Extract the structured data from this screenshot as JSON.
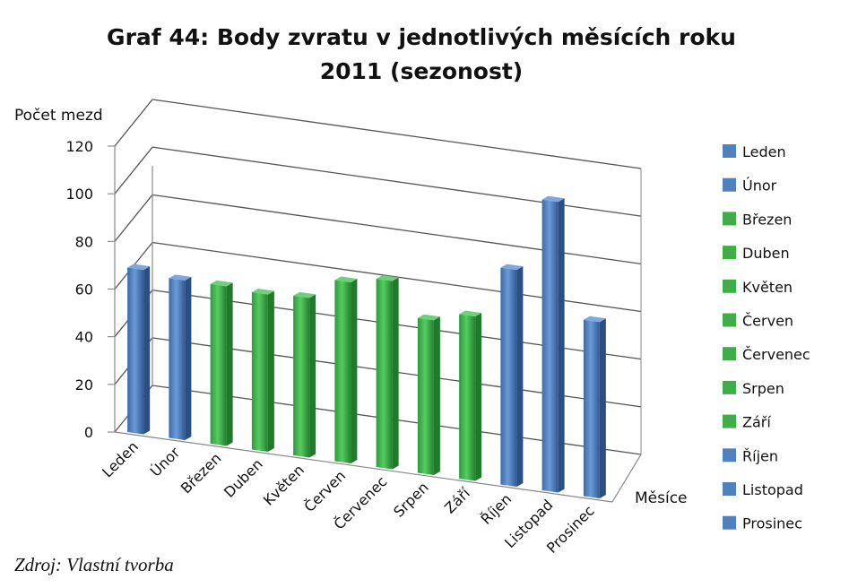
{
  "chart_data": {
    "type": "bar",
    "title": "Graf 44: Body zvratu v jednotlivých měsících roku 2011 (sezonost)",
    "title_lines": [
      "Graf 44: Body zvratu v jednotlivých měsících roku",
      "2011 (sezonost)"
    ],
    "ylabel": "Počet mezd",
    "xlabel": "Měsíce",
    "ylim": [
      0,
      120
    ],
    "yticks": [
      0,
      20,
      40,
      60,
      80,
      100,
      120
    ],
    "grid": true,
    "legend_position": "right",
    "categories": [
      "Leden",
      "Únor",
      "Březen",
      "Duben",
      "Květen",
      "Červen",
      "Červenec",
      "Srpen",
      "Září",
      "Říjen",
      "Listopad",
      "Prosinec"
    ],
    "values": [
      69,
      67,
      67,
      66,
      67,
      76,
      79,
      65,
      69,
      91,
      122,
      74
    ],
    "bar_colors": [
      "#4f81bd",
      "#4f81bd",
      "#3fae49",
      "#3fae49",
      "#3fae49",
      "#3fae49",
      "#3fae49",
      "#3fae49",
      "#3fae49",
      "#4f81bd",
      "#4f81bd",
      "#4f81bd"
    ],
    "source": "Zdroj: Vlastní tvorba"
  },
  "colors": {
    "winter": "#4f81bd",
    "summer": "#3fae49"
  }
}
